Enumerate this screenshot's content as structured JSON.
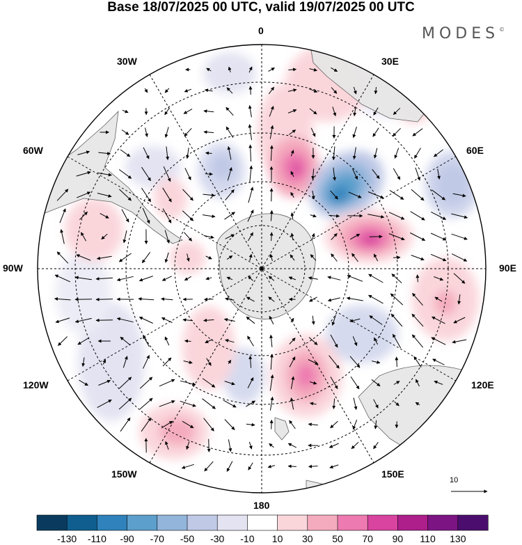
{
  "title": "Base 18/07/2025 00 UTC, valid 19/07/2025 00 UTC",
  "brand": "MODES",
  "brand_mark": "©",
  "longitude_labels": {
    "top": "0",
    "upper_right": "30E",
    "right_upper": "60E",
    "right": "90E",
    "right_lower": "120E",
    "lower_right": "150E",
    "bottom": "180",
    "lower_left": "150W",
    "left_lower": "120W",
    "left": "90W",
    "left_upper": "60W",
    "upper_left": "30W"
  },
  "reference_vector_label": "10",
  "colorbar": {
    "ticks": [
      "-130",
      "-110",
      "-90",
      "-70",
      "-50",
      "-30",
      "-10",
      "10",
      "30",
      "50",
      "70",
      "90",
      "110",
      "130"
    ],
    "colors": [
      "#0a3b5e",
      "#0f5e8f",
      "#2f82bb",
      "#5c9fcc",
      "#93b5db",
      "#c0c9e6",
      "#e3e3f2",
      "#ffffff",
      "#fad6db",
      "#f4abbd",
      "#ed7ab0",
      "#d8449f",
      "#ae1f8c",
      "#7c1583",
      "#4b0e6e"
    ]
  },
  "colors": {
    "land": "#e6e6e6",
    "grid": "#000000"
  }
}
